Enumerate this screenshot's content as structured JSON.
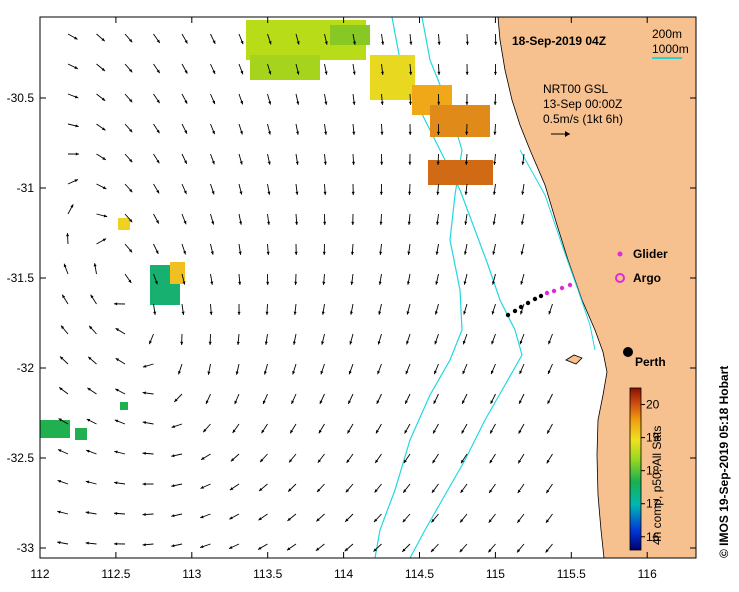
{
  "map": {
    "title": "18-Sep-2019 04Z",
    "scale": {
      "label1": "200m",
      "label2": "1000m",
      "color2": "#2fd2c8"
    },
    "velocity_note": {
      "line1": "NRT00 GSL",
      "line2": "13-Sep 00:00Z",
      "line3": "0.5m/s (1kt 6h)"
    },
    "legend": {
      "glider": "Glider",
      "argo": "Argo",
      "glider_color": "#e02ad8",
      "argo_color": "#e02ad8"
    },
    "city": "Perth",
    "credit": "© IMOS 19-Sep-2019 05:18 Hobart",
    "colorbar": {
      "title": "4h comp, p50, All Sats",
      "ticks": [
        "20",
        "19",
        "18",
        "17",
        "16"
      ],
      "min": 15.6,
      "max": 20.5
    },
    "x_ticks": [
      "112",
      "112.5",
      "113",
      "113.5",
      "114",
      "114.5",
      "115",
      "115.5",
      "116"
    ],
    "y_ticks": [
      "-30.5",
      "-31",
      "-31.5",
      "-32",
      "-32.5",
      "-33"
    ],
    "colors": {
      "land": "#f7c08f",
      "isobath": "#22d8e0",
      "water": "#ffffff"
    }
  }
}
